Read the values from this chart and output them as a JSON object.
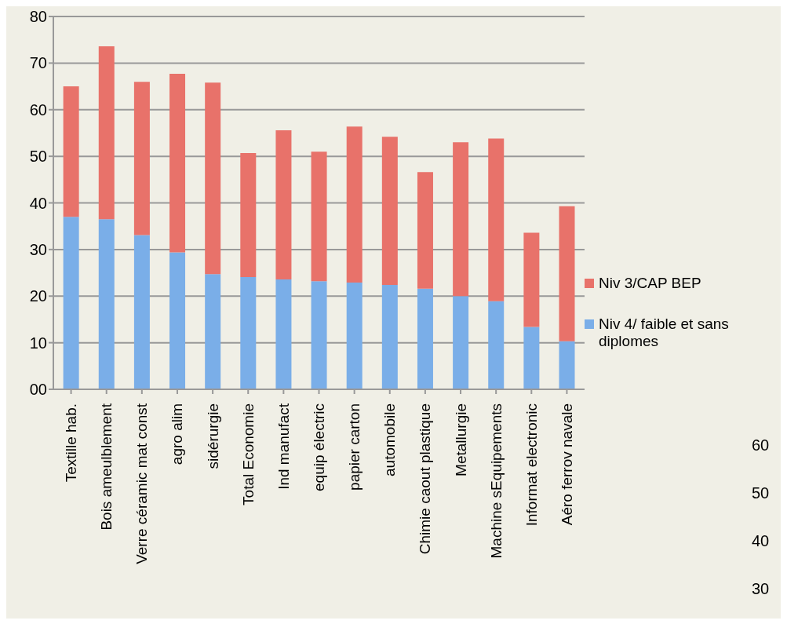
{
  "chart_data": {
    "type": "bar",
    "stacked": true,
    "categories": [
      "Textille hab.",
      "Bois ameulblement",
      "Verre céramic mat const",
      "agro alim",
      "sidérurgie",
      "Total Economie",
      "Ind manufact",
      "equip électric",
      "papier carton",
      "automobile",
      "Chimie caout plastique",
      "Metallurgie",
      "Machine sEquipements",
      "Informat electronic",
      "Aéro ferrov navale"
    ],
    "series": [
      {
        "name": "Niv 4/ faible et sans diplomes",
        "color": "#7aaee8",
        "values": [
          37,
          36.5,
          33.1,
          29.4,
          24.7,
          24.1,
          23.6,
          23.2,
          22.9,
          22.4,
          21.6,
          20,
          18.9,
          13.4,
          10.3
        ]
      },
      {
        "name": "Niv 3/CAP BEP",
        "color": "#e8726a",
        "values": [
          28,
          37.1,
          32.9,
          38.3,
          41.1,
          26.6,
          32,
          27.8,
          33.5,
          31.8,
          25,
          33,
          34.9,
          20.2,
          29
        ]
      }
    ],
    "ylim": [
      0,
      80
    ],
    "yticks": [
      {
        "value": 0,
        "label": "00"
      },
      10,
      20,
      30,
      40,
      50,
      60,
      70,
      80
    ],
    "grid": "y",
    "legend": "right",
    "annotations": [
      "60",
      "50",
      "40",
      "30"
    ]
  }
}
